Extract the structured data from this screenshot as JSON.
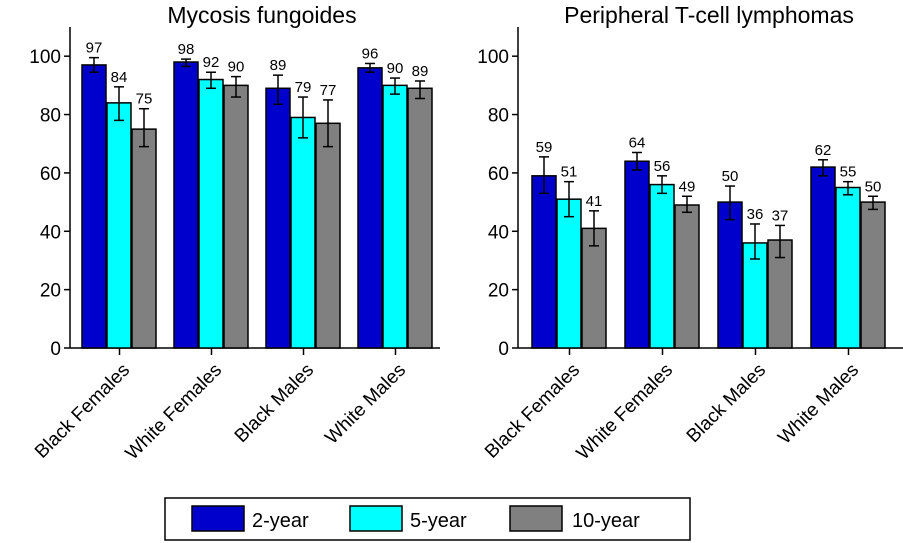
{
  "chart_data": [
    {
      "type": "bar",
      "title": "Mycosis fungoides",
      "categories": [
        "Black Females",
        "White Females",
        "Black Males",
        "White Males"
      ],
      "ylim": [
        0,
        110
      ],
      "yticks": [
        0,
        20,
        40,
        60,
        80,
        100
      ],
      "series": [
        {
          "name": "2-year",
          "values": [
            97,
            98,
            89,
            96
          ],
          "err_low": [
            94.5,
            96.5,
            83.5,
            94.5
          ],
          "err_high": [
            99.5,
            99.0,
            93.5,
            97.5
          ]
        },
        {
          "name": "5-year",
          "values": [
            84,
            92,
            79,
            90
          ],
          "err_low": [
            78,
            89,
            72,
            87
          ],
          "err_high": [
            89.5,
            94.5,
            86,
            92.5
          ]
        },
        {
          "name": "10-year",
          "values": [
            75,
            90,
            77,
            89
          ],
          "err_low": [
            69,
            86,
            69,
            85.5
          ],
          "err_high": [
            82,
            93,
            85,
            91.5
          ]
        }
      ],
      "data_labels": [
        [
          "97",
          "98",
          "89",
          "96"
        ],
        [
          "84",
          "92",
          "79",
          "90"
        ],
        [
          "75",
          "90",
          "77",
          "89"
        ]
      ]
    },
    {
      "type": "bar",
      "title": "Peripheral T-cell lymphomas",
      "categories": [
        "Black Females",
        "White Females",
        "Black Males",
        "White Males"
      ],
      "ylim": [
        0,
        110
      ],
      "yticks": [
        0,
        20,
        40,
        60,
        80,
        100
      ],
      "series": [
        {
          "name": "2-year",
          "values": [
            59,
            64,
            50,
            62
          ],
          "err_low": [
            53,
            61,
            44,
            59
          ],
          "err_high": [
            65.5,
            67,
            55.5,
            64.5
          ]
        },
        {
          "name": "5-year",
          "values": [
            51,
            56,
            36,
            55
          ],
          "err_low": [
            45,
            53,
            30.5,
            52.5
          ],
          "err_high": [
            57,
            59,
            42.5,
            57
          ]
        },
        {
          "name": "10-year",
          "values": [
            41,
            49,
            37,
            50
          ],
          "err_low": [
            35,
            46.5,
            31,
            47.5
          ],
          "err_high": [
            47,
            52,
            42,
            52
          ]
        }
      ],
      "data_labels": [
        [
          "59",
          "64",
          "50",
          "62"
        ],
        [
          "51",
          "56",
          "36",
          "55"
        ],
        [
          "41",
          "49",
          "37",
          "50"
        ]
      ]
    }
  ],
  "legend": {
    "items": [
      {
        "label": "2-year",
        "color": "#0000cc"
      },
      {
        "label": "5-year",
        "color": "#00ffff"
      },
      {
        "label": "10-year",
        "color": "#808080"
      }
    ]
  },
  "colors": {
    "2-year": "#0000cc",
    "5-year": "#00ffff",
    "10-year": "#808080"
  }
}
